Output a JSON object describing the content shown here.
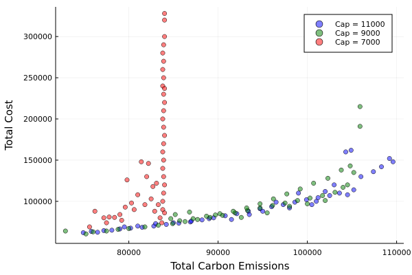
{
  "chart_data": {
    "type": "scatter",
    "xlabel": "Total Carbon Emissions",
    "ylabel": "Total Cost",
    "xlim": [
      71800,
      110800
    ],
    "ylim": [
      49000,
      336000
    ],
    "x_ticks": [
      80000,
      90000,
      100000,
      110000
    ],
    "x_tick_labels": [
      "80000",
      "90000",
      "100000",
      "110000"
    ],
    "y_ticks": [
      100000,
      150000,
      200000,
      250000,
      300000
    ],
    "y_tick_labels": [
      "100000",
      "150000",
      "200000",
      "250000",
      "300000"
    ],
    "grid": true,
    "legend_position": "top-right",
    "series": [
      {
        "name": "Cap = 11000",
        "color": "#0000ff",
        "points": [
          [
            74900,
            62000
          ],
          [
            75800,
            63500
          ],
          [
            76500,
            62500
          ],
          [
            77200,
            64500
          ],
          [
            78100,
            65000
          ],
          [
            79000,
            66500
          ],
          [
            80200,
            67500
          ],
          [
            81500,
            68500
          ],
          [
            82800,
            70000
          ],
          [
            84200,
            72000
          ],
          [
            85600,
            73500
          ],
          [
            86900,
            75000
          ],
          [
            88200,
            77500
          ],
          [
            89500,
            80000
          ],
          [
            90800,
            82500
          ],
          [
            92100,
            85000
          ],
          [
            93400,
            88000
          ],
          [
            94700,
            91000
          ],
          [
            96000,
            93500
          ],
          [
            97300,
            96000
          ],
          [
            98600,
            99000
          ],
          [
            99900,
            102000
          ],
          [
            101200,
            104500
          ],
          [
            102500,
            107000
          ],
          [
            103600,
            110000
          ],
          [
            104500,
            108000
          ],
          [
            105200,
            114000
          ],
          [
            106000,
            130000
          ],
          [
            107400,
            136000
          ],
          [
            108300,
            142000
          ],
          [
            109200,
            152000
          ],
          [
            109600,
            148000
          ],
          [
            104300,
            160000
          ],
          [
            104900,
            162000
          ],
          [
            103000,
            120000
          ],
          [
            102000,
            112000
          ],
          [
            101000,
            100000
          ],
          [
            100500,
            96000
          ],
          [
            99000,
            110000
          ],
          [
            98000,
            92000
          ],
          [
            96500,
            99000
          ],
          [
            95000,
            88000
          ],
          [
            93500,
            84000
          ],
          [
            91500,
            78000
          ],
          [
            89000,
            79000
          ],
          [
            87000,
            76000
          ],
          [
            85000,
            74000
          ],
          [
            83000,
            73000
          ],
          [
            81000,
            70000
          ],
          [
            79500,
            69000
          ]
        ]
      },
      {
        "name": "Cap = 9000",
        "color": "#008000",
        "points": [
          [
            72900,
            64000
          ],
          [
            75200,
            60500
          ],
          [
            76000,
            63000
          ],
          [
            77500,
            64000
          ],
          [
            78800,
            66000
          ],
          [
            80000,
            67000
          ],
          [
            81800,
            69000
          ],
          [
            83300,
            71000
          ],
          [
            84900,
            73000
          ],
          [
            86300,
            75500
          ],
          [
            87700,
            78000
          ],
          [
            89100,
            80500
          ],
          [
            90500,
            83000
          ],
          [
            91900,
            86000
          ],
          [
            93300,
            89000
          ],
          [
            94700,
            92000
          ],
          [
            96100,
            95000
          ],
          [
            97500,
            98000
          ],
          [
            98900,
            101000
          ],
          [
            100300,
            104000
          ],
          [
            101700,
            107000
          ],
          [
            103100,
            111000
          ],
          [
            104500,
            120000
          ],
          [
            105200,
            135000
          ],
          [
            105900,
            215000
          ],
          [
            105900,
            191000
          ],
          [
            104800,
            143000
          ],
          [
            103800,
            138000
          ],
          [
            102300,
            128000
          ],
          [
            100700,
            122000
          ],
          [
            99200,
            115000
          ],
          [
            97700,
            109000
          ],
          [
            96200,
            103000
          ],
          [
            94700,
            97000
          ],
          [
            93200,
            92000
          ],
          [
            91700,
            88000
          ],
          [
            90200,
            85000
          ],
          [
            88700,
            82000
          ],
          [
            87200,
            79000
          ],
          [
            85700,
            76500
          ],
          [
            84700,
            79000
          ],
          [
            85200,
            84000
          ],
          [
            86800,
            87000
          ],
          [
            89700,
            83500
          ],
          [
            92600,
            80500
          ],
          [
            95500,
            86000
          ],
          [
            98000,
            94000
          ],
          [
            100000,
            97000
          ],
          [
            102000,
            101000
          ],
          [
            104000,
            117000
          ]
        ]
      },
      {
        "name": "Cap = 7000",
        "color": "#ff0000",
        "points": [
          [
            75600,
            69000
          ],
          [
            76200,
            88000
          ],
          [
            77200,
            80000
          ],
          [
            77500,
            74000
          ],
          [
            77800,
            81000
          ],
          [
            78400,
            80500
          ],
          [
            79000,
            84000
          ],
          [
            79200,
            77000
          ],
          [
            79600,
            93000
          ],
          [
            79800,
            126000
          ],
          [
            80300,
            98000
          ],
          [
            80600,
            90000
          ],
          [
            81000,
            108000
          ],
          [
            81400,
            148000
          ],
          [
            81800,
            96000
          ],
          [
            82000,
            130000
          ],
          [
            82200,
            146000
          ],
          [
            82500,
            103000
          ],
          [
            82700,
            118000
          ],
          [
            82900,
            88000
          ],
          [
            83100,
            122000
          ],
          [
            83300,
            96000
          ],
          [
            83500,
            80000
          ],
          [
            83700,
            74000
          ],
          [
            83900,
            110000
          ],
          [
            83900,
            130000
          ],
          [
            83900,
            150000
          ],
          [
            83900,
            170000
          ],
          [
            83900,
            190000
          ],
          [
            83900,
            210000
          ],
          [
            83900,
            230000
          ],
          [
            83900,
            250000
          ],
          [
            83900,
            270000
          ],
          [
            83900,
            290000
          ],
          [
            84000,
            300000
          ],
          [
            84000,
            328000
          ],
          [
            83800,
            140000
          ],
          [
            83800,
            160000
          ],
          [
            83800,
            200000
          ],
          [
            83800,
            240000
          ],
          [
            83800,
            260000
          ],
          [
            83800,
            280000
          ],
          [
            83800,
            100000
          ],
          [
            83800,
            90000
          ],
          [
            84000,
            86000
          ],
          [
            84000,
            120000
          ],
          [
            84000,
            180000
          ],
          [
            84000,
            220000
          ],
          [
            84000,
            320000
          ],
          [
            84000,
            237000
          ]
        ]
      }
    ]
  }
}
